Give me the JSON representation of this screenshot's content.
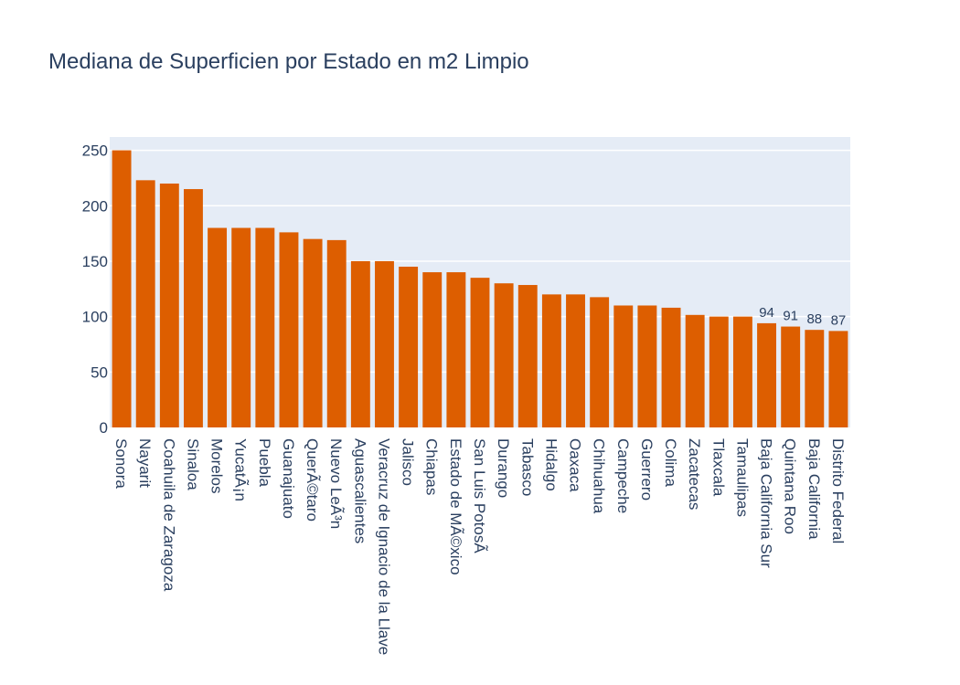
{
  "chart_data": {
    "type": "bar",
    "title": "Mediana de Superficien por Estado en m2 Limpio",
    "xlabel": "",
    "ylabel": "",
    "ylim": [
      0,
      262
    ],
    "yticks": [
      0,
      50,
      100,
      150,
      200,
      250
    ],
    "grid": true,
    "bar_color": "#dd5e00",
    "plot_bg_color": "#e5ecf6",
    "categories": [
      "Sonora",
      "Nayarit",
      "Coahuila de Zaragoza",
      "Sinaloa",
      "Morelos",
      "YucatÃ¡n",
      "Puebla",
      "Guanajuato",
      "QuerÃ©taro",
      "Nuevo LeÃ³n",
      "Aguascalientes",
      "Veracruz de Ignacio de la Llave",
      "Jalisco",
      "Chiapas",
      "Estado de MÃ©xico",
      "San Luis PotosÃ",
      "Durango",
      "Tabasco",
      "Hidalgo",
      "Oaxaca",
      "Chihuahua",
      "Campeche",
      "Guerrero",
      "Colima",
      "Zacatecas",
      "Tlaxcala",
      "Tamaulipas",
      "Baja California Sur",
      "Quintana Roo",
      "Baja California",
      "Distrito Federal"
    ],
    "values": [
      250,
      223,
      220,
      215,
      180,
      180,
      180,
      176,
      170,
      169,
      150,
      150,
      145,
      140,
      140,
      135,
      130,
      128.5,
      120,
      120,
      117.5,
      110,
      110,
      108,
      101.5,
      100,
      100,
      94,
      91,
      88,
      87
    ],
    "data_labels": [
      "",
      "",
      "",
      "",
      "",
      "",
      "",
      "",
      "",
      "",
      "",
      "",
      "",
      "",
      "",
      "",
      "",
      "",
      "",
      "",
      "",
      "",
      "",
      "",
      "",
      "",
      "",
      "94",
      "91",
      "88",
      "87"
    ]
  }
}
